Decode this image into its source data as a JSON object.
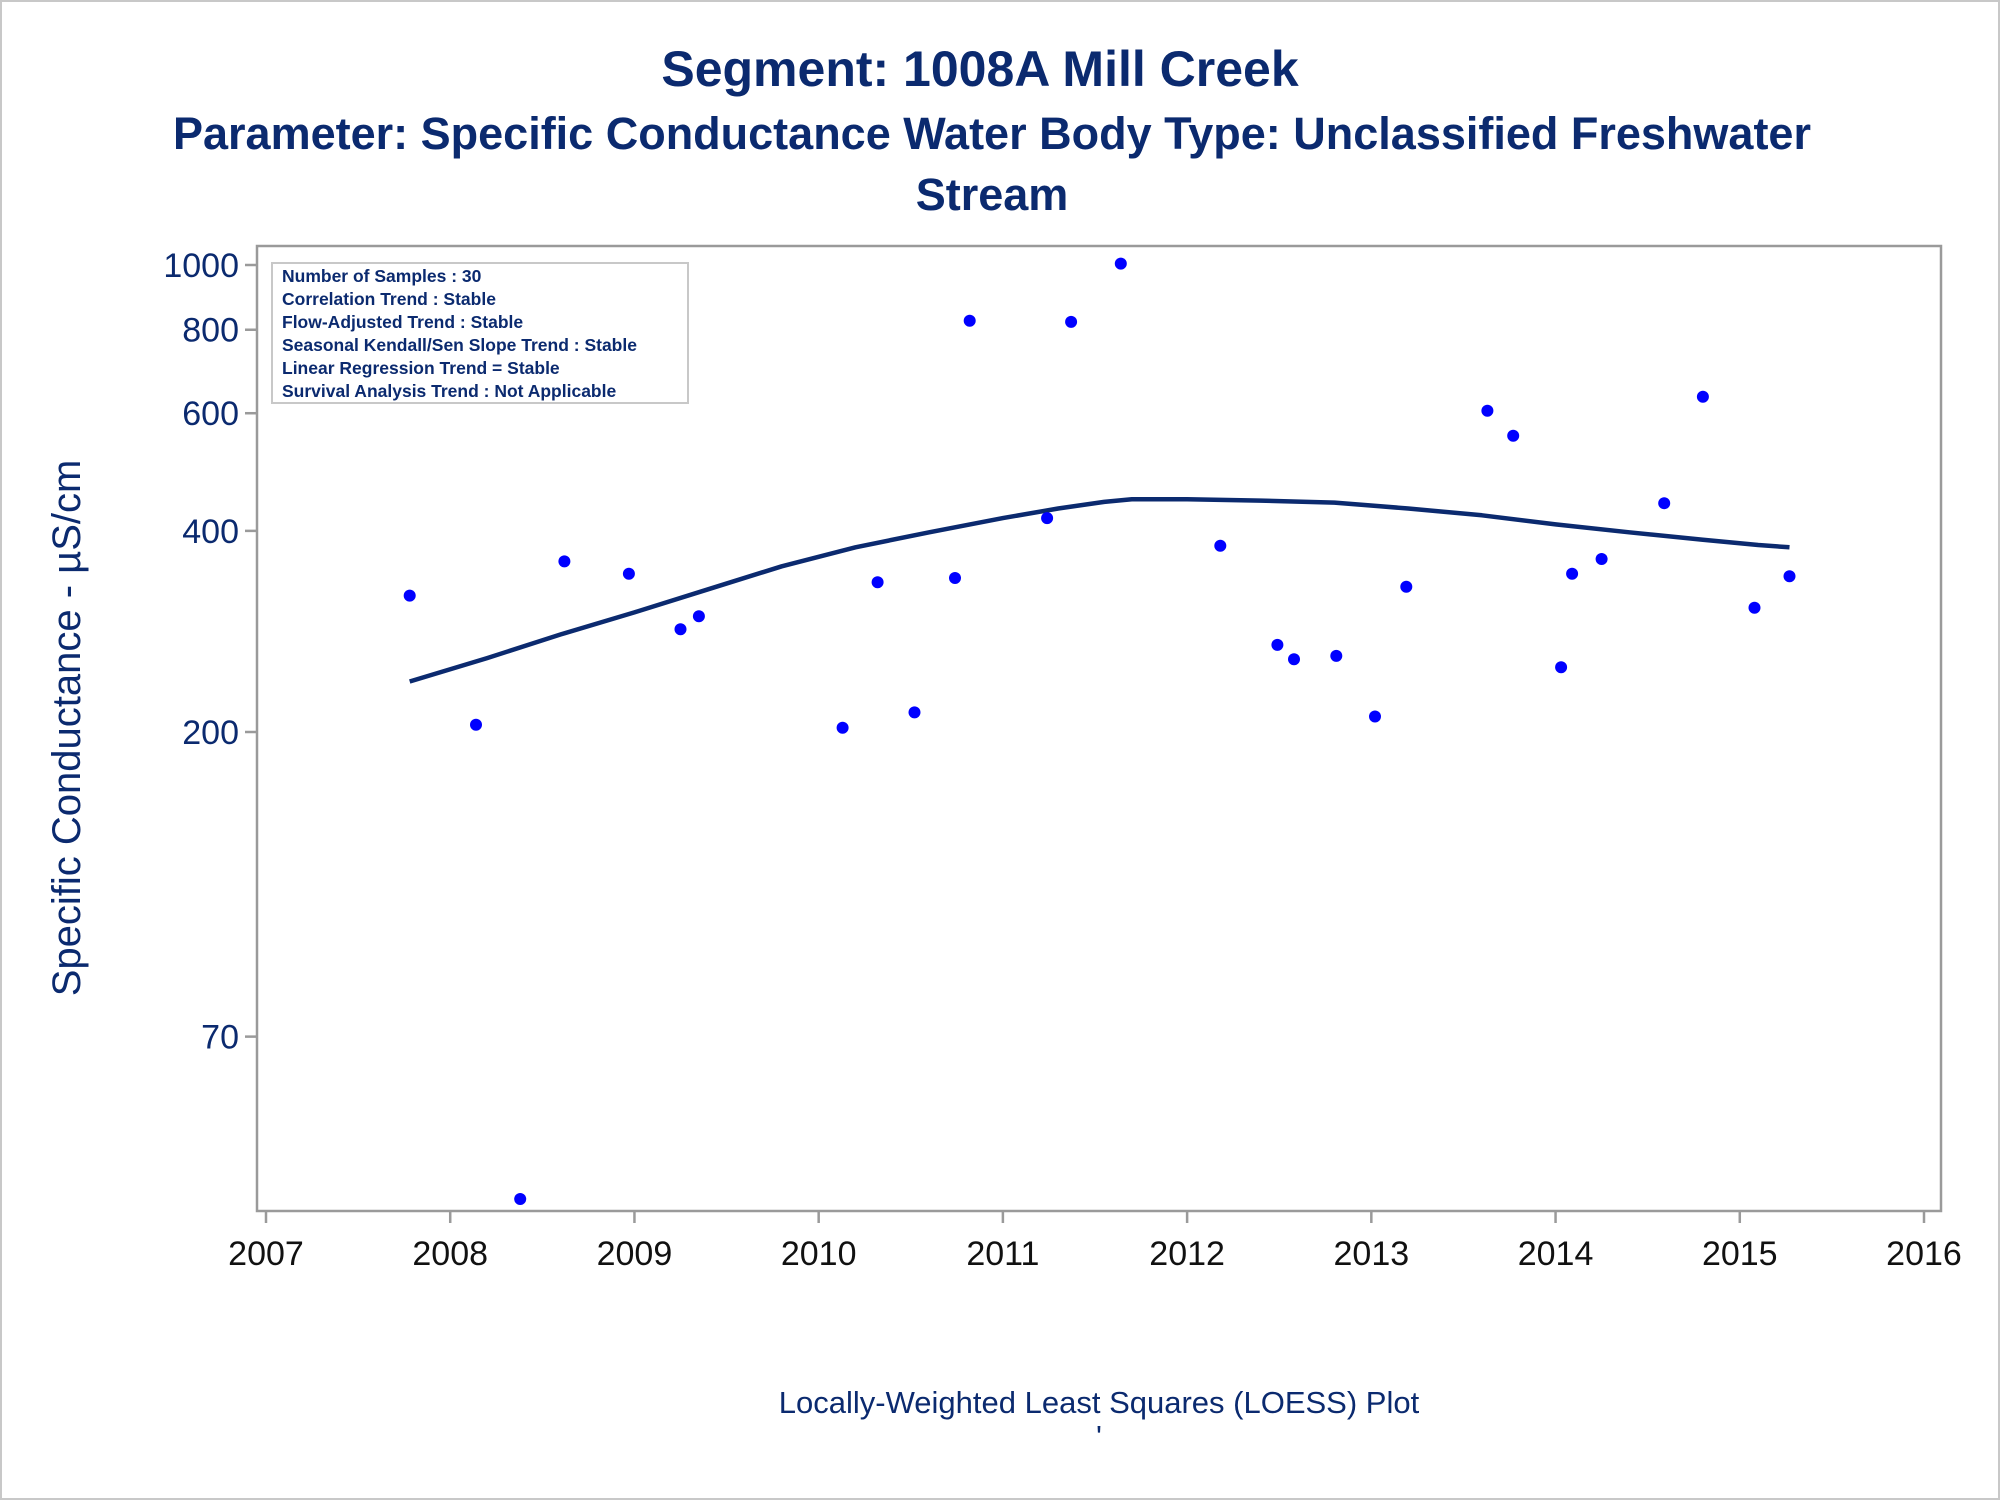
{
  "chart_data": {
    "type": "scatter",
    "title": "Segment: 1008A  Mill Creek",
    "subtitle_lines": [
      "Parameter: Specific Conductance   Water Body Type: Unclassified Freshwater",
      "Stream"
    ],
    "ylabel": "Specific Conductance -  µS/cm",
    "xlabel": "",
    "footnote": "Locally-Weighted Least Squares (LOESS) Plot",
    "footnote_mark": "'",
    "y_scale": "log",
    "ylim": [
      40,
      1000
    ],
    "y_ticks": [
      70,
      200,
      400,
      600,
      800,
      1000
    ],
    "y_tick_labels": [
      "70",
      "200",
      "400",
      "600",
      "800",
      "1000"
    ],
    "xlim": [
      2007,
      2016
    ],
    "x_ticks": [
      2007,
      2008,
      2009,
      2010,
      2011,
      2012,
      2013,
      2014,
      2015,
      2016
    ],
    "x_tick_labels": [
      "2007",
      "2008",
      "2009",
      "2010",
      "2011",
      "2012",
      "2013",
      "2014",
      "2015",
      "2016"
    ],
    "grid": false,
    "stats_box": {
      "placement": "top-left",
      "lines": [
        "Number of Samples : 30",
        "Correlation Trend : Stable",
        "Flow-Adjusted Trend : Stable",
        "Seasonal Kendall/Sen Slope Trend : Stable",
        "Linear Regression Trend = Stable",
        "Survival Analysis Trend : Not Applicable"
      ]
    },
    "series": [
      {
        "kind": "points",
        "color": "#0000ff",
        "x": [
          2007.78,
          2008.14,
          2008.38,
          2008.62,
          2008.97,
          2009.25,
          2009.35,
          2010.13,
          2010.32,
          2010.52,
          2010.74,
          2010.82,
          2011.24,
          2011.37,
          2011.64,
          2012.18,
          2012.49,
          2012.58,
          2012.81,
          2013.02,
          2013.19,
          2013.63,
          2013.77,
          2014.03,
          2014.09,
          2014.25,
          2014.59,
          2014.8,
          2015.08,
          2015.27
        ],
        "y": [
          320,
          205,
          40,
          360,
          345,
          285,
          298,
          203,
          335,
          214,
          340,
          825,
          418,
          822,
          1005,
          380,
          270,
          257,
          260,
          211,
          330,
          605,
          555,
          250,
          345,
          363,
          440,
          635,
          307,
          342
        ]
      },
      {
        "kind": "line",
        "label": "LOESS",
        "color": "#0b2a6f",
        "x": [
          2007.78,
          2008.2,
          2008.6,
          2009.0,
          2009.4,
          2009.8,
          2010.2,
          2010.6,
          2011.0,
          2011.3,
          2011.55,
          2011.7,
          2012.0,
          2012.4,
          2012.8,
          2013.2,
          2013.6,
          2014.0,
          2014.4,
          2014.8,
          2015.1,
          2015.27
        ],
        "y": [
          238,
          258,
          280,
          302,
          327,
          354,
          378,
          398,
          418,
          432,
          442,
          446,
          446,
          444,
          441,
          432,
          422,
          409,
          398,
          388,
          381,
          378
        ]
      }
    ]
  }
}
